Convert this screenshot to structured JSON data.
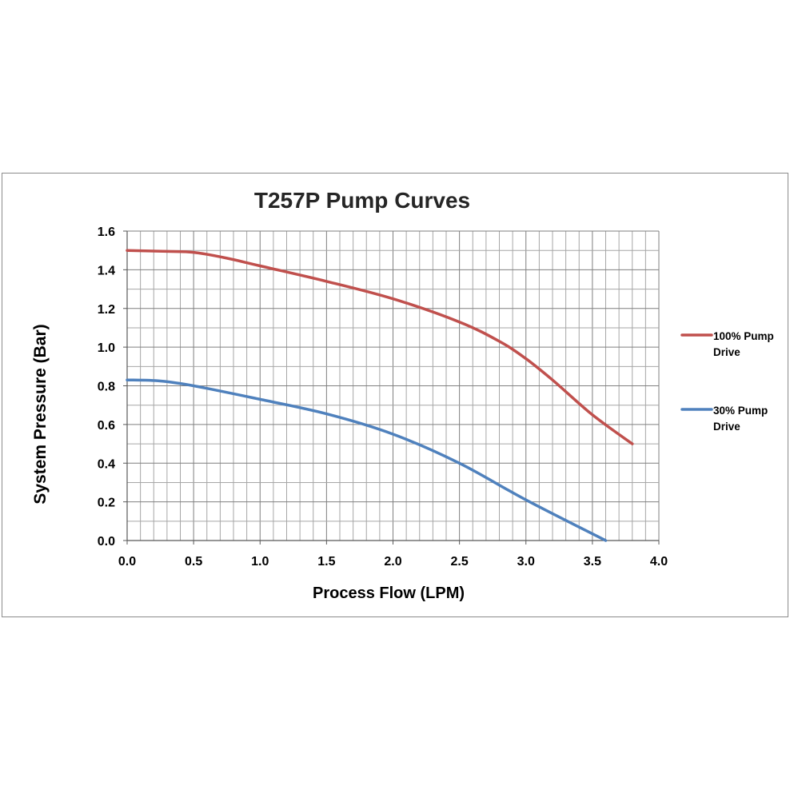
{
  "chart_data": {
    "type": "line",
    "title": "T257P Pump Curves",
    "xlabel": "Process Flow (LPM)",
    "ylabel": "System Pressure (Bar)",
    "xlim": [
      0,
      4.0
    ],
    "ylim": [
      0,
      1.6
    ],
    "x_ticks": [
      "0.0",
      "0.5",
      "1.0",
      "1.5",
      "2.0",
      "2.5",
      "3.0",
      "3.5",
      "4.0"
    ],
    "y_ticks": [
      "0.0",
      "0.2",
      "0.4",
      "0.6",
      "0.8",
      "1.0",
      "1.2",
      "1.4",
      "1.6"
    ],
    "grid": true,
    "legend_position": "right",
    "series": [
      {
        "name_lines": [
          "100% Pump",
          "Drive"
        ],
        "color": "#c0504d",
        "points": [
          [
            0,
            1.5
          ],
          [
            0.3,
            1.495
          ],
          [
            0.5,
            1.49
          ],
          [
            0.75,
            1.46
          ],
          [
            1.0,
            1.42
          ],
          [
            1.5,
            1.34
          ],
          [
            2.0,
            1.25
          ],
          [
            2.5,
            1.13
          ],
          [
            2.8,
            1.03
          ],
          [
            3.0,
            0.94
          ],
          [
            3.2,
            0.83
          ],
          [
            3.5,
            0.65
          ],
          [
            3.8,
            0.5
          ]
        ]
      },
      {
        "name_lines": [
          "30% Pump",
          "Drive"
        ],
        "color": "#4f81bd",
        "points": [
          [
            0,
            0.83
          ],
          [
            0.25,
            0.825
          ],
          [
            0.5,
            0.8
          ],
          [
            1.0,
            0.73
          ],
          [
            1.5,
            0.655
          ],
          [
            2.0,
            0.55
          ],
          [
            2.5,
            0.4
          ],
          [
            3.0,
            0.21
          ],
          [
            3.6,
            0.0
          ]
        ]
      }
    ]
  }
}
